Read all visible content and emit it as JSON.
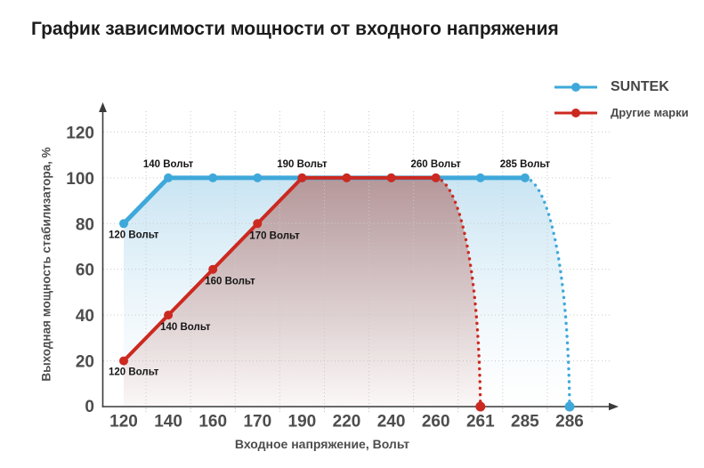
{
  "title": "График зависимости мощности от входного напряжения",
  "legend": [
    {
      "key": "suntek",
      "label": "SUNTEK",
      "color": "#3FA8DA"
    },
    {
      "key": "other-brands",
      "label": "Другие марки",
      "color": "#CC2920"
    }
  ],
  "colors": {
    "suntek": "#3FA8DA",
    "others": "#CC2920",
    "grid": "#c9c9c9",
    "axis": "#3a3a3a",
    "tick_text": "#4d4d4d",
    "annotation": "#161616",
    "fill_blue_top": "#c6e3f2",
    "fill_red_top": "#a24a40"
  },
  "chart_data": {
    "type": "line",
    "title": "График зависимости мощности от входного напряжения",
    "xlabel": "Входное напряжение, Вольт",
    "ylabel": "Выходная мощность стабилизатора, %",
    "categories": [
      "120",
      "140",
      "160",
      "170",
      "190",
      "220",
      "240",
      "260",
      "261",
      "285",
      "286"
    ],
    "yticks": [
      0,
      20,
      40,
      60,
      80,
      100,
      120
    ],
    "ylim": [
      0,
      130
    ],
    "grid": true,
    "legend_position": "top-right",
    "series": [
      {
        "name": "SUNTEK",
        "color": "#3FA8DA",
        "points": [
          {
            "x": "120",
            "y": 80
          },
          {
            "x": "140",
            "y": 100
          },
          {
            "x": "160",
            "y": 100
          },
          {
            "x": "170",
            "y": 100
          },
          {
            "x": "190",
            "y": 100
          },
          {
            "x": "220",
            "y": 100
          },
          {
            "x": "240",
            "y": 100
          },
          {
            "x": "260",
            "y": 100
          },
          {
            "x": "261",
            "y": 100
          },
          {
            "x": "285",
            "y": 100
          }
        ],
        "dropoff": {
          "from_x": "285",
          "from_y": 100,
          "to_x": "286",
          "to_y": 0,
          "style": "dotted"
        },
        "annotations": [
          {
            "x": "120",
            "y": 80,
            "text": "120 Вольт",
            "placement": "below"
          },
          {
            "x": "140",
            "y": 100,
            "text": "140 Вольт",
            "placement": "above"
          },
          {
            "x": "285",
            "y": 100,
            "text": "285 Вольт",
            "placement": "above"
          }
        ]
      },
      {
        "name": "Другие марки",
        "color": "#CC2920",
        "points": [
          {
            "x": "120",
            "y": 20
          },
          {
            "x": "140",
            "y": 40
          },
          {
            "x": "160",
            "y": 60
          },
          {
            "x": "170",
            "y": 80
          },
          {
            "x": "190",
            "y": 100
          },
          {
            "x": "220",
            "y": 100
          },
          {
            "x": "240",
            "y": 100
          },
          {
            "x": "260",
            "y": 100
          }
        ],
        "dropoff": {
          "from_x": "260",
          "from_y": 100,
          "to_x": "261",
          "to_y": 0,
          "style": "dotted"
        },
        "annotations": [
          {
            "x": "120",
            "y": 20,
            "text": "120 Вольт",
            "placement": "below"
          },
          {
            "x": "140",
            "y": 40,
            "text": "140 Вольт",
            "placement": "below-right"
          },
          {
            "x": "160",
            "y": 60,
            "text": "160 Вольт",
            "placement": "below-right"
          },
          {
            "x": "170",
            "y": 80,
            "text": "170 Вольт",
            "placement": "below-right"
          },
          {
            "x": "190",
            "y": 100,
            "text": "190 Вольт",
            "placement": "above"
          },
          {
            "x": "260",
            "y": 100,
            "text": "260 Вольт",
            "placement": "above"
          }
        ]
      }
    ]
  }
}
